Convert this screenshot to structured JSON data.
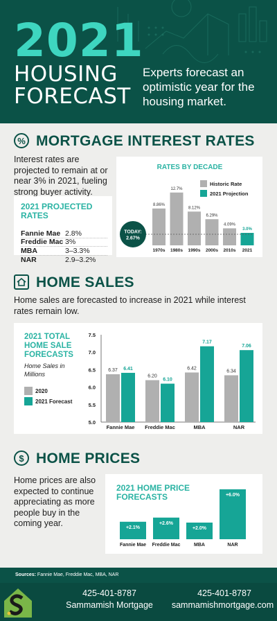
{
  "header": {
    "year": "2021",
    "title_line1": "HOUSING",
    "title_line2": "FORECAST",
    "tagline": "Experts forecast an optimistic year for the housing market."
  },
  "mortgage": {
    "icon": "percent-icon",
    "title": "MORTGAGE INTEREST RATES",
    "body": "Interest rates are projected to remain at or near 3% in 2021, fueling strong buyer activity.",
    "projected_title": "2021 PROJECTED RATES",
    "projected_rows": [
      {
        "name": "Fannie Mae",
        "value": "2.8%"
      },
      {
        "name": "Freddie Mac",
        "value": "3%"
      },
      {
        "name": "MBA",
        "value": "3–3.3%"
      },
      {
        "name": "NAR",
        "value": "2.9–3.2%"
      }
    ]
  },
  "home_sales": {
    "icon": "house-icon",
    "title": "HOME SALES",
    "body": "Home sales are forecasted to increase in 2021 while interest rates remain low."
  },
  "home_prices": {
    "icon": "dollar-icon",
    "title": "HOME PRICES",
    "body": "Home prices are also expected to continue appreciating as more people buy in the coming year."
  },
  "chart_data": [
    {
      "type": "bar",
      "title": "RATES BY DECADE",
      "categories": [
        "1970s",
        "1980s",
        "1990s",
        "2000s",
        "2010s",
        "2021"
      ],
      "series": [
        {
          "name": "Historic Rate",
          "values": [
            8.86,
            12.7,
            8.12,
            6.29,
            4.09,
            null
          ],
          "labels": [
            "8.86%",
            "12.7%",
            "8.12%",
            "6.29%",
            "4.09%",
            ""
          ]
        },
        {
          "name": "2021 Projection",
          "values": [
            null,
            null,
            null,
            null,
            null,
            3.0
          ],
          "labels": [
            "",
            "",
            "",
            "",
            "",
            "3.0%"
          ]
        }
      ],
      "annotation": {
        "label": "TODAY:",
        "value": "2.67%",
        "y": 2.67
      },
      "ylim": [
        0,
        14
      ],
      "colors": {
        "historic": "#b0b0b0",
        "projection": "#16a596"
      }
    },
    {
      "type": "bar",
      "title": "2021 TOTAL HOME SALE FORECASTS",
      "subtitle": "Home Sales in Millions",
      "categories": [
        "Fannie Mae",
        "Freddie Mac",
        "MBA",
        "NAR"
      ],
      "series": [
        {
          "name": "2020",
          "values": [
            6.37,
            6.2,
            6.42,
            6.34
          ],
          "labels": [
            "6.37",
            "6.20",
            "6.42",
            "6.34"
          ]
        },
        {
          "name": "2021 Forecast",
          "values": [
            6.41,
            6.1,
            7.17,
            7.06
          ],
          "labels": [
            "6.41",
            "6.10",
            "7.17",
            "7.06"
          ]
        }
      ],
      "yticks": [
        "7.5",
        "7.0",
        "6.5",
        "6.0",
        "5.5",
        "5.0"
      ],
      "ylim": [
        5.0,
        7.5
      ],
      "colors": {
        "y2020": "#b0b0b0",
        "y2021": "#16a596"
      }
    },
    {
      "type": "bar",
      "title": "2021 HOME PRICE FORECASTS",
      "categories": [
        "Fannie Mae",
        "Freddie Mac",
        "MBA",
        "NAR"
      ],
      "values": [
        2.1,
        2.6,
        2.0,
        6.0
      ],
      "labels": [
        "+2.1%",
        "+2.6%",
        "+2.0%",
        "+6.0%"
      ],
      "ylim": [
        0,
        6.5
      ],
      "colors": {
        "bar": "#16a596"
      }
    }
  ],
  "footer": {
    "sources_label": "Sources:",
    "sources_text": "Fannie Mae, Freddie Mac, MBA, NAR",
    "phone_left": "425-401-8787",
    "company": "Sammamish Mortgage",
    "phone_right": "425-401-8787",
    "website": "sammamishmortgage.com"
  }
}
